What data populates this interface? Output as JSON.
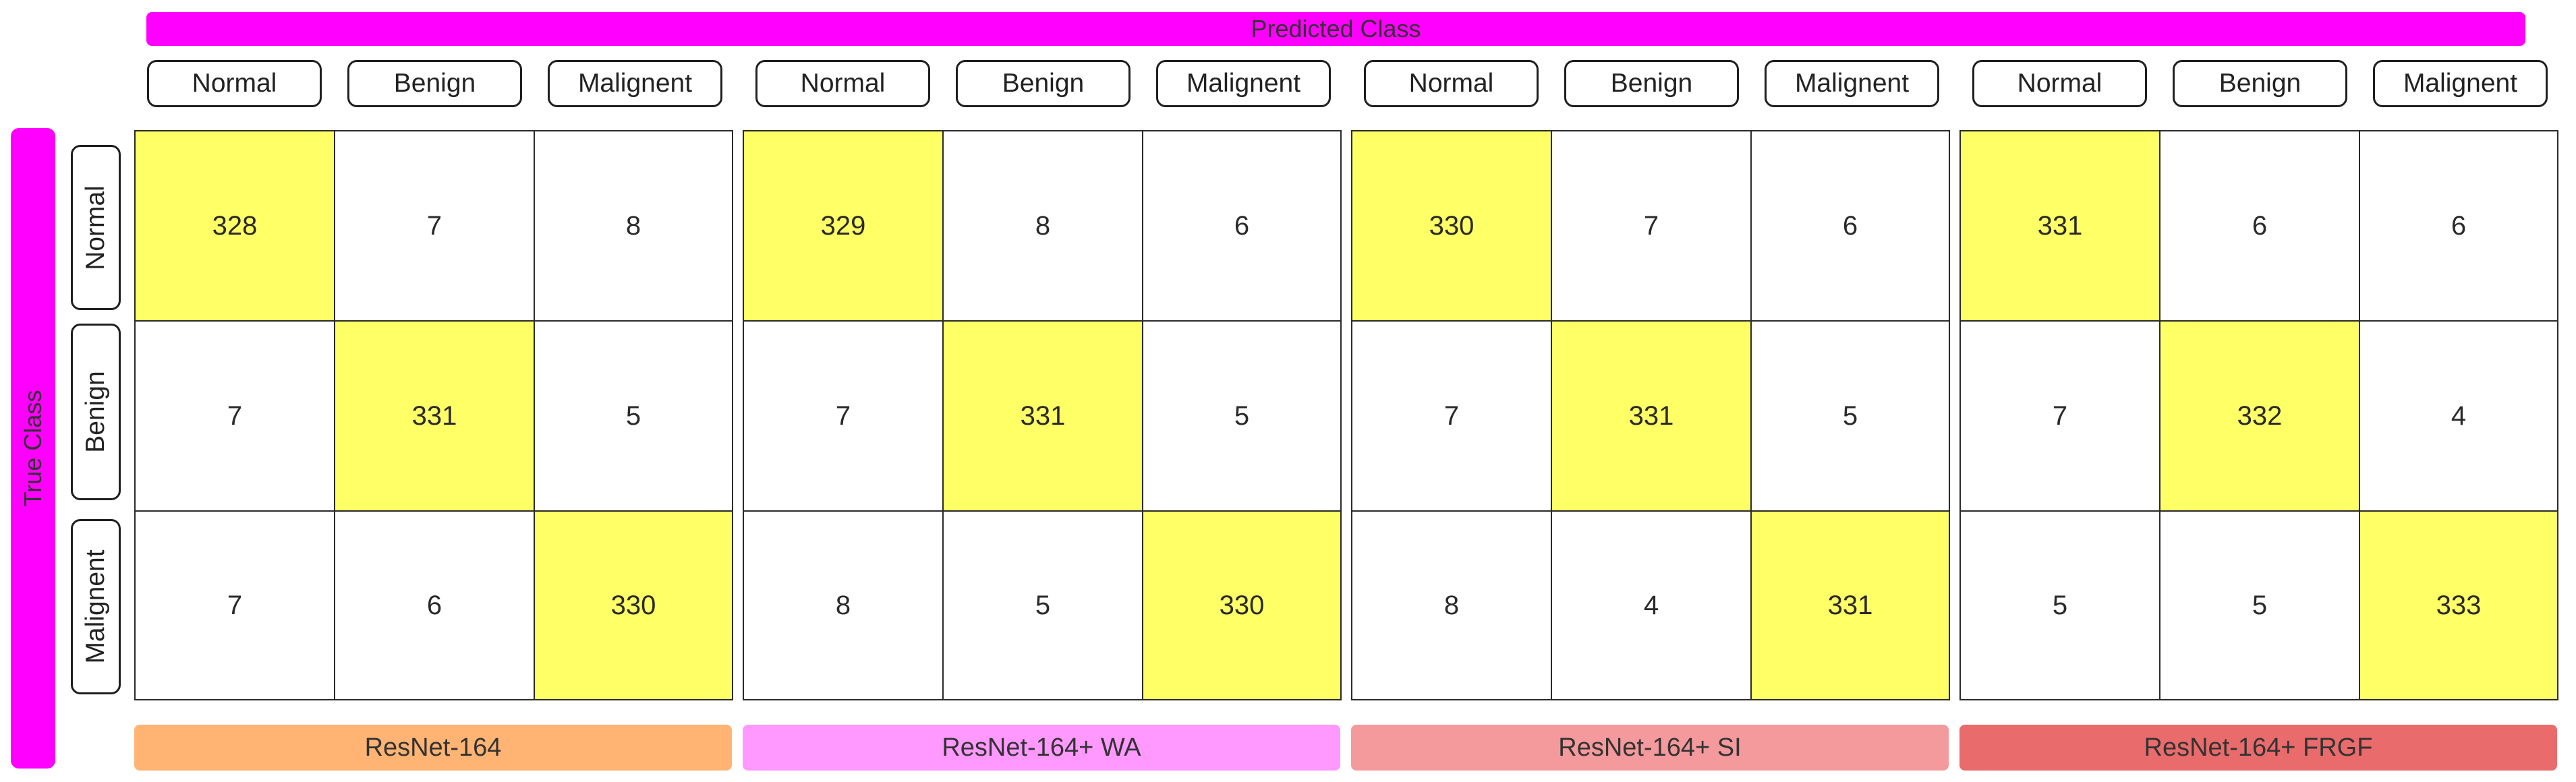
{
  "colors": {
    "banner": "#ff00ff",
    "diagonal": "#ffff66",
    "offdiagonal": "#ffffff",
    "model_bars": [
      "#ffb473",
      "#ff99ff",
      "#f4999c",
      "#ea6b6b"
    ]
  },
  "header": {
    "predicted_label": "Predicted Class",
    "true_label": "True Class"
  },
  "classes": [
    "Normal",
    "Benign",
    "Malignent"
  ],
  "chart_data": {
    "type": "heatmap",
    "title": "",
    "xlabel": "Predicted Class",
    "ylabel": "True Class",
    "x_categories": [
      "Normal",
      "Benign",
      "Malignent"
    ],
    "y_categories": [
      "Normal",
      "Benign",
      "Malignent"
    ],
    "matrices": [
      {
        "name": "ResNet-164",
        "values": [
          [
            328,
            7,
            8
          ],
          [
            7,
            331,
            5
          ],
          [
            7,
            6,
            330
          ]
        ]
      },
      {
        "name": "ResNet-164+ WA",
        "values": [
          [
            329,
            8,
            6
          ],
          [
            7,
            331,
            5
          ],
          [
            8,
            5,
            330
          ]
        ]
      },
      {
        "name": "ResNet-164+ SI",
        "values": [
          [
            330,
            7,
            6
          ],
          [
            7,
            331,
            5
          ],
          [
            8,
            4,
            331
          ]
        ]
      },
      {
        "name": "ResNet-164+ FRGF",
        "values": [
          [
            331,
            6,
            6
          ],
          [
            7,
            332,
            4
          ],
          [
            5,
            5,
            333
          ]
        ]
      }
    ]
  }
}
